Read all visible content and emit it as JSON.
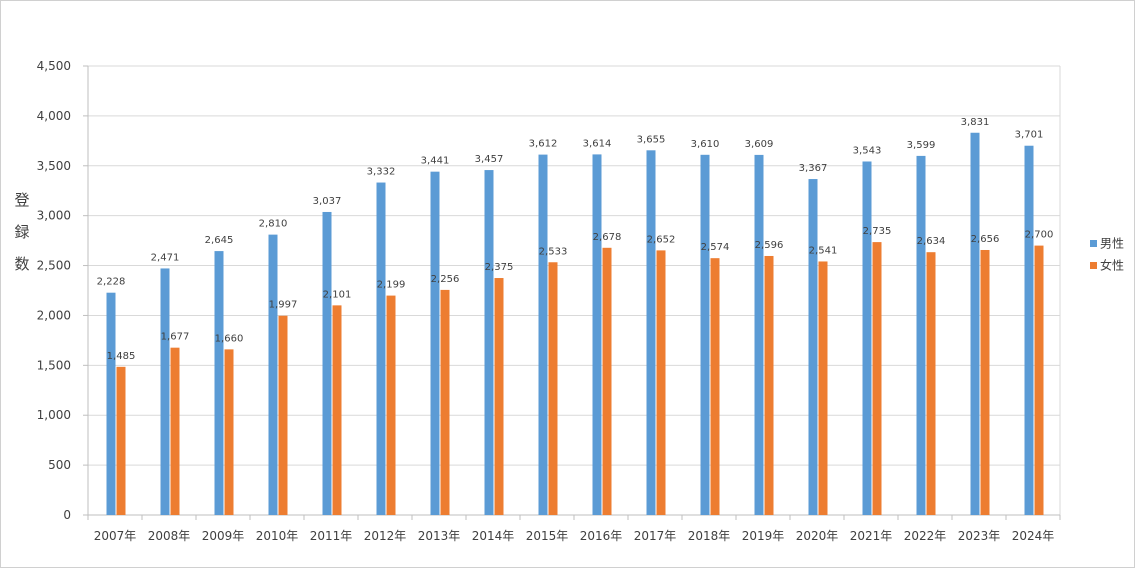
{
  "chart_data": {
    "type": "bar",
    "title": "",
    "xlabel": "",
    "ylabel": "登録数",
    "ylim": [
      0,
      4500
    ],
    "yticks": [
      0,
      500,
      1000,
      1500,
      2000,
      2500,
      3000,
      3500,
      4000,
      4500
    ],
    "ytick_labels": [
      "0",
      "500",
      "1,000",
      "1,500",
      "2,000",
      "2,500",
      "3,000",
      "3,500",
      "4,000",
      "4,500"
    ],
    "grid": true,
    "legend_position": "right",
    "categories": [
      "2007年",
      "2008年",
      "2009年",
      "2010年",
      "2011年",
      "2012年",
      "2013年",
      "2014年",
      "2015年",
      "2016年",
      "2017年",
      "2018年",
      "2019年",
      "2020年",
      "2021年",
      "2022年",
      "2023年",
      "2024年"
    ],
    "series": [
      {
        "name": "男性",
        "color": "#5b9bd5",
        "values": [
          2228,
          2471,
          2645,
          2810,
          3037,
          3332,
          3441,
          3457,
          3612,
          3614,
          3655,
          3610,
          3609,
          3367,
          3543,
          3599,
          3831,
          3701
        ],
        "labels": [
          "2,228",
          "2,471",
          "2,645",
          "2,810",
          "3,037",
          "3,332",
          "3,441",
          "3,457",
          "3,612",
          "3,614",
          "3,655",
          "3,610",
          "3,609",
          "3,367",
          "3,543",
          "3,599",
          "3,831",
          "3,701"
        ]
      },
      {
        "name": "女性",
        "color": "#ed7d31",
        "values": [
          1485,
          1677,
          1660,
          1997,
          2101,
          2199,
          2256,
          2375,
          2533,
          2678,
          2652,
          2574,
          2596,
          2541,
          2735,
          2634,
          2656,
          2700
        ],
        "labels": [
          "1,485",
          "1,677",
          "1,660",
          "1,997",
          "2,101",
          "2,199",
          "2,256",
          "2,375",
          "2,533",
          "2,678",
          "2,652",
          "2,574",
          "2,596",
          "2,541",
          "2,735",
          "2,634",
          "2,656",
          "2,700"
        ]
      }
    ]
  }
}
